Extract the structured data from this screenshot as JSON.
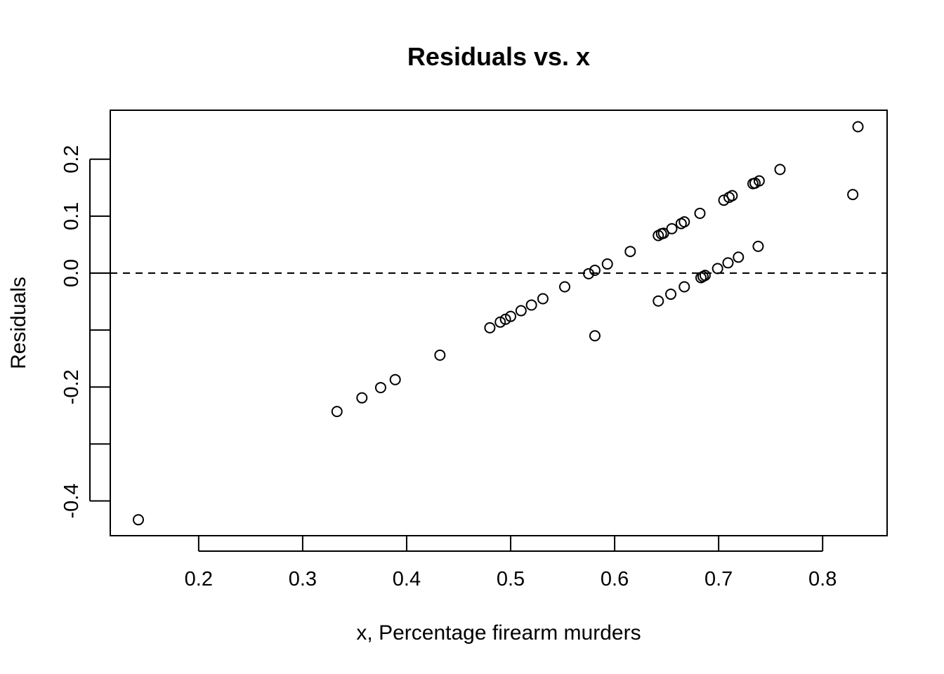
{
  "chart_data": {
    "type": "scatter",
    "title": "Residuals vs. x",
    "xlabel": "x, Percentage firearm murders",
    "ylabel": "Residuals",
    "xlim": [
      0.115,
      0.862
    ],
    "ylim": [
      -0.461,
      0.286
    ],
    "x_ticks": [
      0.2,
      0.3,
      0.4,
      0.5,
      0.6,
      0.7,
      0.8
    ],
    "x_tick_labels": [
      "0.2",
      "0.3",
      "0.4",
      "0.5",
      "0.6",
      "0.7",
      "0.8"
    ],
    "y_ticks": [
      -0.4,
      -0.3,
      -0.2,
      -0.1,
      0.0,
      0.1,
      0.2
    ],
    "y_tick_labels": [
      "-0.4",
      "",
      "-0.2",
      "",
      "0.0",
      "0.1",
      "0.2"
    ],
    "reference_line": {
      "y": 0.0,
      "style": "dashed"
    },
    "grid": false,
    "points": [
      {
        "x": 0.142,
        "y": -0.433
      },
      {
        "x": 0.333,
        "y": -0.243
      },
      {
        "x": 0.357,
        "y": -0.219
      },
      {
        "x": 0.375,
        "y": -0.201
      },
      {
        "x": 0.389,
        "y": -0.187
      },
      {
        "x": 0.432,
        "y": -0.144
      },
      {
        "x": 0.48,
        "y": -0.096
      },
      {
        "x": 0.49,
        "y": -0.086
      },
      {
        "x": 0.495,
        "y": -0.081
      },
      {
        "x": 0.5,
        "y": -0.076
      },
      {
        "x": 0.51,
        "y": -0.066
      },
      {
        "x": 0.52,
        "y": -0.056
      },
      {
        "x": 0.531,
        "y": -0.045
      },
      {
        "x": 0.552,
        "y": -0.024
      },
      {
        "x": 0.575,
        "y": -0.001
      },
      {
        "x": 0.581,
        "y": 0.005
      },
      {
        "x": 0.593,
        "y": 0.016
      },
      {
        "x": 0.581,
        "y": -0.11
      },
      {
        "x": 0.615,
        "y": 0.038
      },
      {
        "x": 0.642,
        "y": 0.066
      },
      {
        "x": 0.645,
        "y": 0.069
      },
      {
        "x": 0.647,
        "y": 0.07
      },
      {
        "x": 0.655,
        "y": 0.078
      },
      {
        "x": 0.664,
        "y": 0.087
      },
      {
        "x": 0.667,
        "y": 0.09
      },
      {
        "x": 0.682,
        "y": 0.105
      },
      {
        "x": 0.642,
        "y": -0.049
      },
      {
        "x": 0.654,
        "y": -0.037
      },
      {
        "x": 0.667,
        "y": -0.024
      },
      {
        "x": 0.683,
        "y": -0.008
      },
      {
        "x": 0.685,
        "y": -0.006
      },
      {
        "x": 0.687,
        "y": -0.004
      },
      {
        "x": 0.699,
        "y": 0.008
      },
      {
        "x": 0.709,
        "y": 0.018
      },
      {
        "x": 0.719,
        "y": 0.028
      },
      {
        "x": 0.738,
        "y": 0.047
      },
      {
        "x": 0.705,
        "y": 0.128
      },
      {
        "x": 0.71,
        "y": 0.133
      },
      {
        "x": 0.713,
        "y": 0.136
      },
      {
        "x": 0.733,
        "y": 0.157
      },
      {
        "x": 0.735,
        "y": 0.158
      },
      {
        "x": 0.739,
        "y": 0.162
      },
      {
        "x": 0.759,
        "y": 0.182
      },
      {
        "x": 0.829,
        "y": 0.138
      },
      {
        "x": 0.834,
        "y": 0.257
      }
    ]
  }
}
